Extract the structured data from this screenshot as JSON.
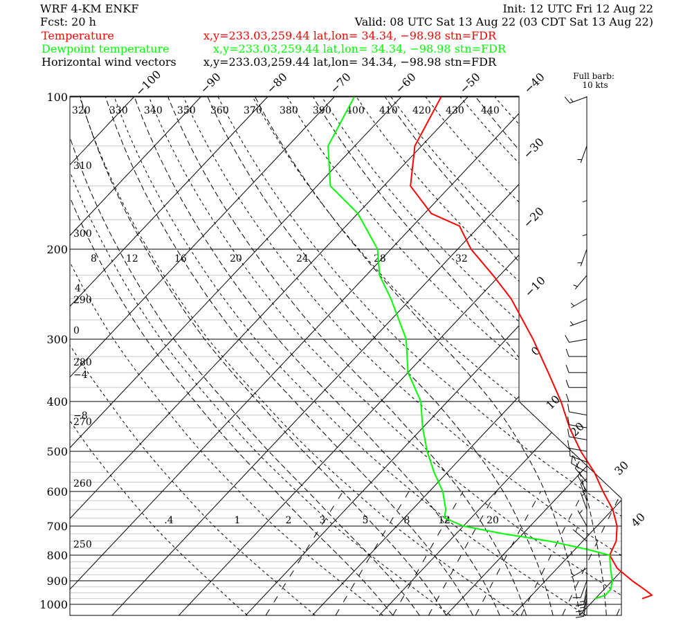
{
  "header": {
    "model": "WRF 4-KM ENKF",
    "init": "Init: 12 UTC Fri 12 Aug 22",
    "fcst": "Fcst:   20 h",
    "valid": "Valid: 08 UTC Sat 13 Aug 22 (03 CDT Sat 13 Aug 22)",
    "legend": [
      {
        "label": "Temperature",
        "info": "x,y=233.03,259.44   lat,lon= 34.34, −98.98   stn=FDR",
        "color": "#ff0000"
      },
      {
        "label": "Dewpoint temperature",
        "info": "x,y=233.03,259.44   lat,lon= 34.34, −98.98   stn=FDR",
        "color": "#00ff00"
      },
      {
        "label": "Horizontal wind vectors",
        "info": "x,y=233.03,259.44   lat,lon= 34.34, −98.98   stn=FDR",
        "color": "#000000"
      }
    ]
  },
  "barb_key": {
    "line1": "Full barb:",
    "line2": "10 kts"
  },
  "chart_data": {
    "type": "line",
    "diagram": "skew-T log-p",
    "y_axis_log_pressure_hPa": [
      100,
      200,
      300,
      400,
      500,
      600,
      700,
      800,
      900,
      1000
    ],
    "temperature_isotherm_labels": [
      "-100",
      "-90",
      "-80",
      "-70",
      "-60",
      "-50",
      "-40",
      "-30",
      "-20",
      "-10",
      "0",
      "10",
      "20",
      "30",
      "40"
    ],
    "dry_adiabat_labels_K": [
      "320",
      "330",
      "340",
      "350",
      "360",
      "370",
      "380",
      "390",
      "400",
      "410",
      "420",
      "430",
      "440",
      "310",
      "300",
      "290",
      "280",
      "270",
      "260",
      "250"
    ],
    "moist_adiabat_labels_C": [
      "8",
      "12",
      "16",
      "20",
      "24",
      "28",
      "32",
      "4",
      "0",
      "-4",
      "-8"
    ],
    "mixing_ratio_labels_gkg": [
      ".4",
      "1",
      "2",
      "3",
      "5",
      "8",
      "12",
      "20"
    ],
    "series": [
      {
        "name": "Temperature",
        "color": "#ff0000",
        "points": [
          [
            975,
            27
          ],
          [
            960,
            28
          ],
          [
            935,
            26
          ],
          [
            900,
            23
          ],
          [
            850,
            19
          ],
          [
            800,
            16
          ],
          [
            750,
            15
          ],
          [
            700,
            13
          ],
          [
            650,
            10
          ],
          [
            600,
            6
          ],
          [
            550,
            2
          ],
          [
            500,
            -3
          ],
          [
            450,
            -8
          ],
          [
            400,
            -13
          ],
          [
            350,
            -19
          ],
          [
            300,
            -26
          ],
          [
            250,
            -35
          ],
          [
            225,
            -41
          ],
          [
            200,
            -48
          ],
          [
            180,
            -53
          ],
          [
            170,
            -59
          ],
          [
            150,
            -66
          ],
          [
            125,
            -71
          ],
          [
            100,
            -74
          ]
        ]
      },
      {
        "name": "Dewpoint temperature",
        "color": "#00ff00",
        "points": [
          [
            975,
            20
          ],
          [
            960,
            21
          ],
          [
            935,
            21
          ],
          [
            900,
            20
          ],
          [
            850,
            18
          ],
          [
            800,
            16
          ],
          [
            780,
            12
          ],
          [
            750,
            5
          ],
          [
            725,
            -3
          ],
          [
            700,
            -10
          ],
          [
            675,
            -14
          ],
          [
            650,
            -15
          ],
          [
            600,
            -18
          ],
          [
            550,
            -22
          ],
          [
            500,
            -26
          ],
          [
            450,
            -30
          ],
          [
            400,
            -34
          ],
          [
            350,
            -40
          ],
          [
            300,
            -45
          ],
          [
            250,
            -53
          ],
          [
            225,
            -58
          ],
          [
            200,
            -62
          ],
          [
            170,
            -70
          ],
          [
            150,
            -78
          ],
          [
            125,
            -84
          ],
          [
            100,
            -87
          ]
        ]
      }
    ],
    "wind_barbs": [
      {
        "p": 100,
        "spd": 15,
        "dir": 250
      },
      {
        "p": 125,
        "spd": 5,
        "dir": 200
      },
      {
        "p": 150,
        "spd": 5,
        "dir": 180
      },
      {
        "p": 175,
        "spd": 5,
        "dir": 180
      },
      {
        "p": 200,
        "spd": 5,
        "dir": 200
      },
      {
        "p": 225,
        "spd": 5,
        "dir": 220
      },
      {
        "p": 250,
        "spd": 5,
        "dir": 240
      },
      {
        "p": 275,
        "spd": 5,
        "dir": 250
      },
      {
        "p": 300,
        "spd": 10,
        "dir": 260
      },
      {
        "p": 325,
        "spd": 10,
        "dir": 270
      },
      {
        "p": 350,
        "spd": 10,
        "dir": 270
      },
      {
        "p": 375,
        "spd": 10,
        "dir": 270
      },
      {
        "p": 400,
        "spd": 10,
        "dir": 270
      },
      {
        "p": 425,
        "spd": 10,
        "dir": 280
      },
      {
        "p": 450,
        "spd": 10,
        "dir": 280
      },
      {
        "p": 475,
        "spd": 10,
        "dir": 280
      },
      {
        "p": 500,
        "spd": 10,
        "dir": 280
      },
      {
        "p": 525,
        "spd": 10,
        "dir": 290
      },
      {
        "p": 550,
        "spd": 10,
        "dir": 300
      },
      {
        "p": 575,
        "spd": 10,
        "dir": 320
      },
      {
        "p": 600,
        "spd": 10,
        "dir": 330
      },
      {
        "p": 625,
        "spd": 10,
        "dir": 340
      },
      {
        "p": 650,
        "spd": 5,
        "dir": 340
      },
      {
        "p": 700,
        "spd": 5,
        "dir": 330
      },
      {
        "p": 750,
        "spd": 5,
        "dir": 310
      },
      {
        "p": 800,
        "spd": 5,
        "dir": 270
      },
      {
        "p": 850,
        "spd": 5,
        "dir": 240
      },
      {
        "p": 900,
        "spd": 10,
        "dir": 200
      },
      {
        "p": 925,
        "spd": 15,
        "dir": 190
      },
      {
        "p": 950,
        "spd": 15,
        "dir": 190
      },
      {
        "p": 975,
        "spd": 15,
        "dir": 190
      }
    ]
  }
}
